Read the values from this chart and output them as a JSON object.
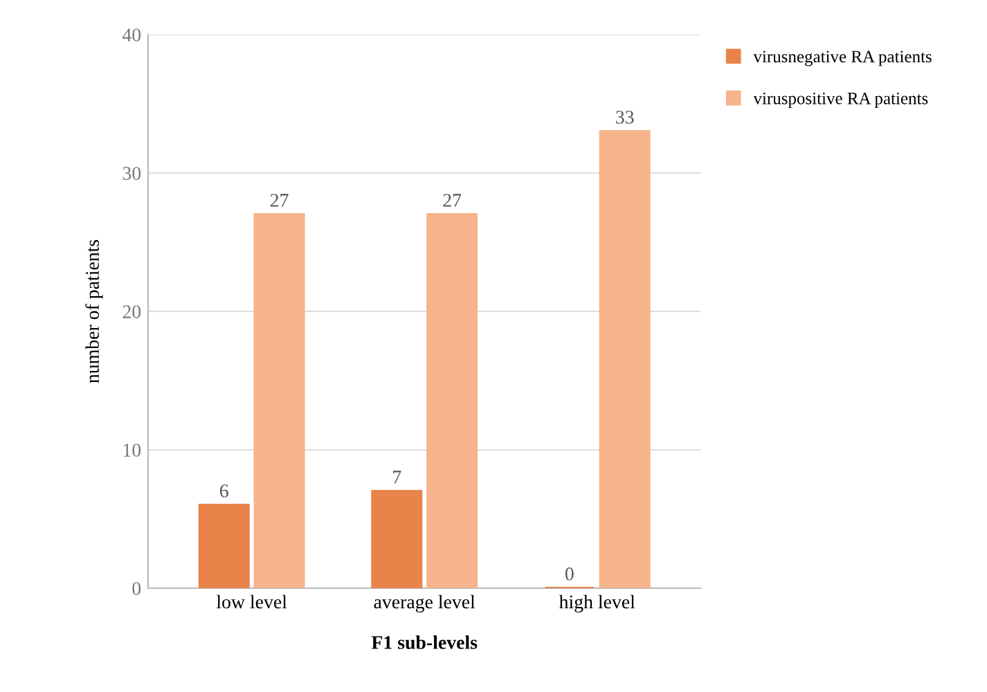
{
  "chart_data": {
    "type": "bar",
    "xlabel": "F1 sub-levels",
    "ylabel": "number of patients",
    "categories": [
      "low level",
      "average level",
      "high level"
    ],
    "series": [
      {
        "name": "virusnegative RA patients",
        "color": "#e8834a",
        "values": [
          6,
          7,
          0
        ]
      },
      {
        "name": "viruspositive RA patients",
        "color": "#f5b48c",
        "values": [
          27,
          27,
          33
        ]
      }
    ],
    "ylim": [
      0,
      40
    ],
    "yticks": [
      0,
      10,
      20,
      30,
      40
    ],
    "grid": "y",
    "data_labels": true,
    "legend": "top right"
  }
}
